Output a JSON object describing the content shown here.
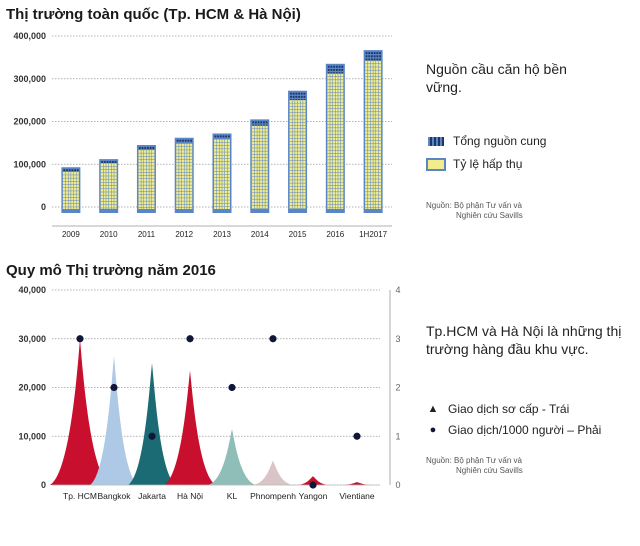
{
  "chart_data": [
    {
      "type": "bar",
      "title": "Thị trường toàn quốc (Tp. HCM & Hà Nội)",
      "categories": [
        "2009",
        "2010",
        "2011",
        "2012",
        "2013",
        "2014",
        "2015",
        "2016",
        "1H2017"
      ],
      "series": [
        {
          "name": "Tổng nguồn cung",
          "values": [
            93000,
            112000,
            145000,
            162000,
            172000,
            205000,
            272000,
            335000,
            367000
          ]
        },
        {
          "name": "Tỷ lệ hấp thụ",
          "values": [
            82000,
            102000,
            133000,
            148000,
            158000,
            190000,
            250000,
            312000,
            342000
          ]
        }
      ],
      "yticks": [
        "400,000",
        "300,000",
        "200,000",
        "100,000",
        "0"
      ],
      "ylim": [
        0,
        400000
      ],
      "colors": {
        "supply": "#5b86c5",
        "absorb": "#f2ec8a",
        "window_dark": "#1c3766"
      },
      "note": "Nguồn cầu căn hộ bền vững.",
      "legend": [
        "Tổng nguồn cung",
        "Tỷ lệ hấp thụ"
      ],
      "source": [
        "Nguồn: Bộ phận Tư vấn và",
        "Nghiên cứu Savills"
      ]
    },
    {
      "type": "area",
      "title": "Quy mô Thị trường năm 2016",
      "categories": [
        "Tp. HCM",
        "Bangkok",
        "Jakarta",
        "Hà Nội",
        "KL",
        "Phnompenh",
        "Yangon",
        "Vientiane"
      ],
      "series": [
        {
          "name": "Giao dịch sơ cấp - Trái",
          "values": [
            30000,
            26500,
            25000,
            23500,
            11500,
            5000,
            1800,
            600
          ],
          "colors": [
            "#c8102e",
            "#adc9e6",
            "#1b6b74",
            "#c8102e",
            "#8fbdb7",
            "#d9c4c8",
            "#c8102e",
            "#c8102e"
          ]
        },
        {
          "name": "Giao dịch/1000 người – Phải",
          "values": [
            3.0,
            2.0,
            1.0,
            3.0,
            2.0,
            3.0,
            0.0,
            1.0
          ]
        }
      ],
      "yticks_left": [
        "40,000",
        "30,000",
        "20,000",
        "10,000",
        "0"
      ],
      "yticks_right": [
        "4",
        "3",
        "2",
        "1",
        "0"
      ],
      "ylim_left": [
        0,
        40000
      ],
      "ylim_right": [
        0,
        4
      ],
      "note": "Tp.HCM và Hà Nội là những thị trường hàng đầu khu vực.",
      "legend": [
        {
          "icon": "▲",
          "label": "Giao dịch sơ cấp - Trái"
        },
        {
          "icon": "●",
          "label": "Giao dịch/1000 người – Phải"
        }
      ],
      "source": [
        "Nguồn: Bộ phận Tư vấn và",
        "Nghiên cứu Savills"
      ]
    }
  ]
}
